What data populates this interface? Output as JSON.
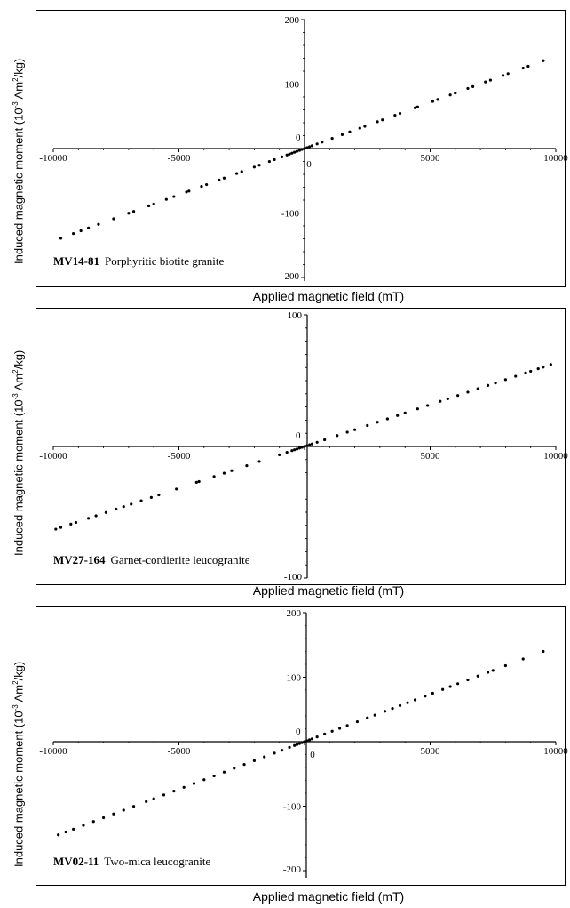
{
  "chart_data": [
    {
      "type": "scatter",
      "sample_id": "MV14-81",
      "sample_desc": "Porphyritic biotite granite",
      "ylabel": "Induced magnetic moment (10",
      "ylabel_sup": "-3",
      "ylabel_tail": " Am",
      "ylabel_sup2": "2",
      "ylabel_end": "/kg)",
      "xlabel": "Applied magnetic field (mT)",
      "xlim": [
        -10000,
        10000
      ],
      "ylim": [
        -200,
        200
      ],
      "xticks": [
        "-10000",
        "-5000",
        "0",
        "5000",
        "10000"
      ],
      "yticks": [
        "200",
        "100",
        "0",
        "-100",
        "-200"
      ],
      "ytick_values": [
        200,
        100,
        0,
        -100,
        -200
      ],
      "slope": 0.01434,
      "x": [
        -9700,
        -9200,
        -8900,
        -8600,
        -8200,
        -7600,
        -7000,
        -6800,
        -6200,
        -6000,
        -5500,
        -5200,
        -4700,
        -4600,
        -4100,
        -3900,
        -3400,
        -3200,
        -2700,
        -2500,
        -2000,
        -1800,
        -1400,
        -1200,
        -900,
        -700,
        -600,
        -500,
        -400,
        -300,
        -200,
        -100,
        0,
        100,
        200,
        300,
        500,
        700,
        1100,
        1500,
        1800,
        2200,
        2400,
        2900,
        3100,
        3600,
        3800,
        4400,
        4500,
        5100,
        5300,
        5800,
        6000,
        6500,
        6700,
        7200,
        7400,
        7900,
        8100,
        8700,
        8900,
        9500
      ]
    },
    {
      "type": "scatter",
      "sample_id": "MV27-164",
      "sample_desc": "Garnet-cordierite leucogranite",
      "ylabel": "Induced magnetic moment (10",
      "ylabel_sup": "-3",
      "ylabel_tail": " Am",
      "ylabel_sup2": "2",
      "ylabel_end": "/kg)",
      "xlabel": "Applied magnetic field (mT)",
      "xlim": [
        -10000,
        10000
      ],
      "ylim": [
        -100,
        100
      ],
      "xticks": [
        "-10000",
        "-5000",
        "0",
        "5000",
        "10000"
      ],
      "yticks": [
        "100",
        "0",
        "-100"
      ],
      "ytick_values": [
        100,
        0,
        -100
      ],
      "slope": 0.00635,
      "x": [
        -9900,
        -9700,
        -9300,
        -9100,
        -8600,
        -8300,
        -7900,
        -7500,
        -7200,
        -6900,
        -6500,
        -6100,
        -5800,
        -5100,
        -4300,
        -4200,
        -3600,
        -3200,
        -2900,
        -2300,
        -1800,
        -1000,
        -700,
        -500,
        -400,
        -300,
        -200,
        -100,
        0,
        100,
        200,
        300,
        500,
        800,
        1300,
        1700,
        2000,
        2500,
        2900,
        3300,
        3700,
        4000,
        4500,
        4900,
        5400,
        5700,
        6100,
        6500,
        6900,
        7300,
        7600,
        8000,
        8400,
        8800,
        9000,
        9300,
        9500,
        9800
      ]
    },
    {
      "type": "scatter",
      "sample_id": "MV02-11",
      "sample_desc": "Two-mica leucogranite",
      "ylabel": "Induced magnetic moment (10",
      "ylabel_sup": "-3",
      "ylabel_tail": " Am",
      "ylabel_sup2": "2",
      "ylabel_end": "/kg)",
      "xlabel": "Applied magnetic field (mT)",
      "xlim": [
        -10000,
        10000
      ],
      "ylim": [
        -200,
        200
      ],
      "xticks": [
        "-10000",
        "-5000",
        "0",
        "5000",
        "10000"
      ],
      "yticks": [
        "200",
        "100",
        "0",
        "-100",
        "-200"
      ],
      "ytick_values": [
        200,
        100,
        0,
        -100,
        -200
      ],
      "slope": 0.01474,
      "x": [
        -9800,
        -9500,
        -9200,
        -8800,
        -8400,
        -8000,
        -7600,
        -7200,
        -6800,
        -6300,
        -6000,
        -5600,
        -5200,
        -4800,
        -4400,
        -4000,
        -3600,
        -3200,
        -2800,
        -2400,
        -2000,
        -1600,
        -1200,
        -900,
        -600,
        -400,
        -300,
        -200,
        -100,
        0,
        100,
        200,
        300,
        500,
        800,
        1100,
        1400,
        1700,
        2100,
        2500,
        2800,
        3200,
        3500,
        3800,
        4100,
        4400,
        4800,
        5100,
        5500,
        5800,
        6100,
        6500,
        6900,
        7300,
        7500,
        8000,
        8700,
        9500
      ]
    }
  ]
}
